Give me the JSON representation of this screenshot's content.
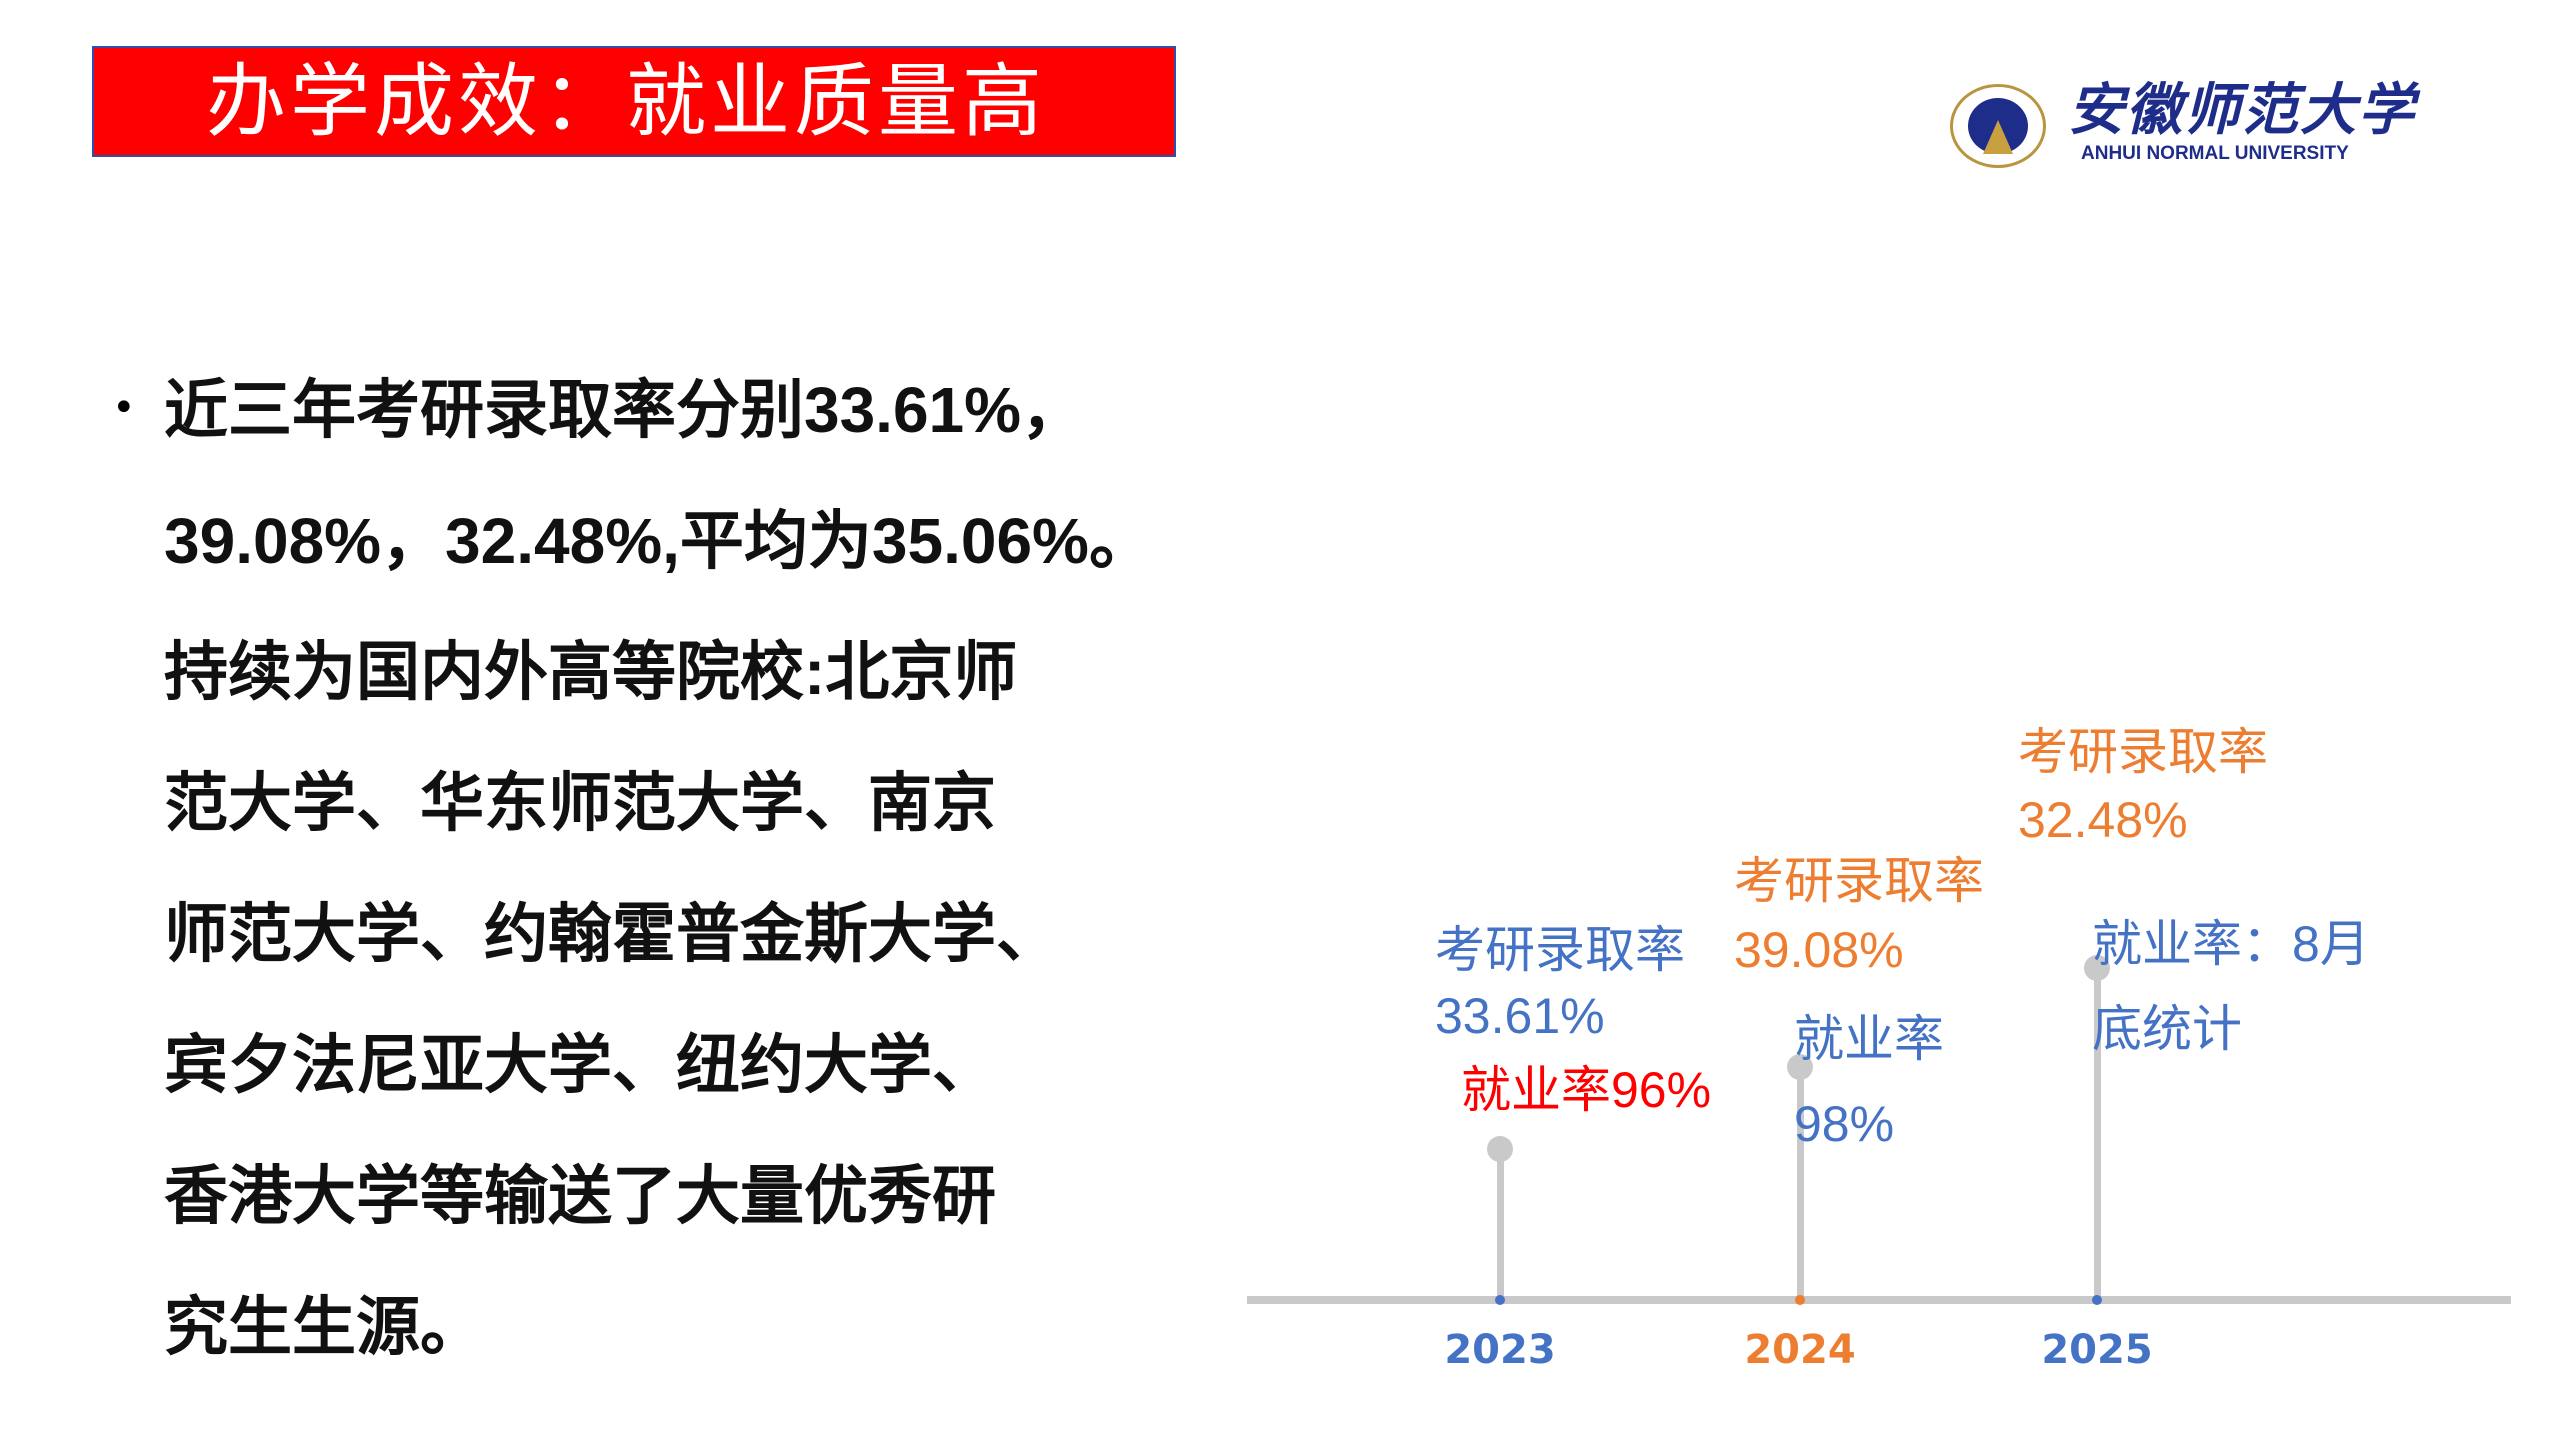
{
  "title": "办学成效：就业质量高",
  "logo": {
    "name_cn": "安徽师范大学",
    "name_en": "ANHUI NORMAL UNIVERSITY"
  },
  "body": {
    "bullet": "•",
    "lines": [
      "近三年考研录取率分别33.61%，",
      "39.08%，32.48%,平均为35.06%。",
      "持续为国内外高等院校:北京师",
      "范大学、华东师范大学、南京",
      "师范大学、约翰霍普金斯大学、",
      "宾夕法尼亚大学、纽约大学、",
      "香港大学等输送了大量优秀研",
      "究生生源。"
    ]
  },
  "timeline": {
    "colors": {
      "blue": "#4472C4",
      "orange": "#ED7D31",
      "red": "#FF0000",
      "gray": "#C9C9C9"
    },
    "years": [
      {
        "year": "2023",
        "kaoyan_label": "考研录取率",
        "kaoyan_value": "33.61%",
        "employment": "就业率96%"
      },
      {
        "year": "2024",
        "kaoyan_label": "考研录取率",
        "kaoyan_value": "39.08%",
        "employment_label": "就业率",
        "employment_value": "98%"
      },
      {
        "year": "2025",
        "kaoyan_label": "考研录取率",
        "kaoyan_value": "32.48%",
        "employment_label": "就业率：8月",
        "employment_value": "底统计"
      }
    ]
  }
}
